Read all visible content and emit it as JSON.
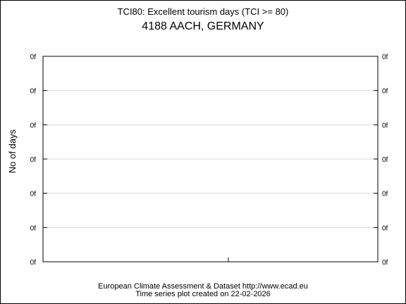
{
  "chart_data": {
    "type": "line",
    "title": "TCI80: Excellent tourism days (TCI >= 80)",
    "subtitle": "4188 AACH, GERMANY",
    "ylabel": "No of days",
    "xlabel": "",
    "y_tick_labels": [
      "0f",
      "0f",
      "0f",
      "0f",
      "0f",
      "0f",
      "0f"
    ],
    "x_tick_labels": [],
    "series": [],
    "grid": true,
    "footer": {
      "line1": "European Climate Assessment & Dataset  http://www.ecad.eu",
      "line2": "Time series plot created on 22-02-2026"
    }
  }
}
